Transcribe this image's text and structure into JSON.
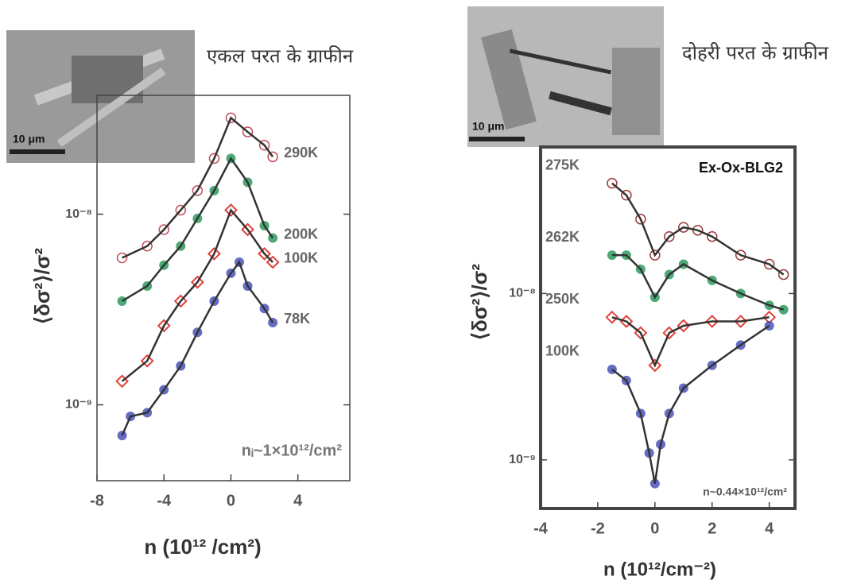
{
  "chart_data": [
    {
      "type": "scatter",
      "caption": "एकल परत के ग्राफीन",
      "inset_scale": "10 μm",
      "x_label": "n (10¹² /cm²)",
      "y_label": "⟨δσ²⟩/σ²",
      "note": "nᵢ~1×10¹²/cm²",
      "xlim": [
        -8,
        7.1
      ],
      "xticks": [
        -8,
        -4,
        0,
        4
      ],
      "ylim": [
        4e-10,
        4.2e-08
      ],
      "log_y": true,
      "yticks": [
        {
          "value": 1e-08,
          "label": "10⁻⁸"
        },
        {
          "value": 1e-09,
          "label": "10⁻⁹"
        }
      ],
      "fit_line": true,
      "series": [
        {
          "name": "290K",
          "color": "#c0505a",
          "marker": "open-circle",
          "x": [
            -6.5,
            -5,
            -4,
            -3,
            -2,
            -1,
            0,
            1,
            2,
            2.5
          ],
          "values": [
            5.9e-09,
            6.8e-09,
            8.3e-09,
            1.05e-08,
            1.33e-08,
            1.96e-08,
            3.2e-08,
            2.7e-08,
            2.3e-08,
            2e-08
          ]
        },
        {
          "name": "200K",
          "color": "#2e9a5e",
          "marker": "circle",
          "x": [
            -6.5,
            -5,
            -4,
            -3,
            -2,
            -1,
            0,
            1,
            2,
            2.5
          ],
          "values": [
            3.5e-09,
            4.2e-09,
            5.4e-09,
            6.8e-09,
            9.5e-09,
            1.33e-08,
            1.96e-08,
            1.47e-08,
            8.7e-09,
            7.5e-09
          ]
        },
        {
          "name": "100K",
          "color": "#e0403a",
          "marker": "diamond",
          "x": [
            -6.5,
            -5,
            -4,
            -3,
            -2,
            -1,
            0,
            1,
            2,
            2.5
          ],
          "values": [
            1.33e-09,
            1.7e-09,
            2.6e-09,
            3.5e-09,
            4.4e-09,
            6.2e-09,
            1.05e-08,
            8.3e-09,
            6.2e-09,
            5.6e-09
          ]
        },
        {
          "name": "78K",
          "color": "#4a52b8",
          "marker": "circle",
          "x": [
            -6.5,
            -6,
            -5,
            -4,
            -3,
            -2,
            -1,
            0,
            0.5,
            1,
            2,
            2.5
          ],
          "values": [
            6.9e-10,
            8.7e-10,
            9.1e-10,
            1.2e-09,
            1.6e-09,
            2.4e-09,
            3.5e-09,
            4.9e-09,
            5.6e-09,
            4.2e-09,
            3.2e-09,
            2.7e-09
          ]
        }
      ]
    },
    {
      "type": "scatter",
      "caption": "दोहरी परत के ग्राफीन",
      "inset_scale": "10 μm",
      "x_label": "n (10¹²/cm⁻²)",
      "y_label": "⟨δσ²⟩/σ²",
      "note": "n~0.44×10¹²/cm²",
      "sample": "Ex-Ox-BLG2",
      "xlim": [
        -4,
        4.9
      ],
      "xticks": [
        -4,
        -2,
        0,
        2,
        4
      ],
      "ylim": [
        5.1e-10,
        7.6e-08
      ],
      "log_y": true,
      "yticks": [
        {
          "value": 1e-08,
          "label": "10⁻⁸"
        },
        {
          "value": 1e-09,
          "label": "10⁻⁹"
        }
      ],
      "fit_line": true,
      "series": [
        {
          "name": "275K",
          "color": "#9a3a3a",
          "marker": "open-circle",
          "x": [
            -1.5,
            -1,
            -0.5,
            0,
            0.5,
            1,
            1.5,
            2,
            3,
            4,
            4.5
          ],
          "values": [
            4.6e-08,
            3.9e-08,
            2.8e-08,
            1.7e-08,
            2.2e-08,
            2.5e-08,
            2.4e-08,
            2.2e-08,
            1.7e-08,
            1.5e-08,
            1.3e-08
          ]
        },
        {
          "name": "262K",
          "color": "#2e9a5e",
          "marker": "circle",
          "x": [
            -1.5,
            -1,
            -0.5,
            0,
            0.5,
            1,
            2,
            3,
            4,
            4.5
          ],
          "values": [
            1.7e-08,
            1.7e-08,
            1.4e-08,
            9.5e-09,
            1.3e-08,
            1.5e-08,
            1.2e-08,
            1e-08,
            8.5e-09,
            8e-09
          ]
        },
        {
          "name": "250K",
          "color": "#e0403a",
          "marker": "diamond",
          "x": [
            -1.5,
            -1,
            -0.5,
            0,
            0.5,
            1,
            2,
            3,
            4
          ],
          "values": [
            7.2e-09,
            6.8e-09,
            5.8e-09,
            3.7e-09,
            5.8e-09,
            6.4e-09,
            6.8e-09,
            6.8e-09,
            7.2e-09
          ]
        },
        {
          "name": "100K",
          "color": "#4a52b8",
          "marker": "circle",
          "x": [
            -1.5,
            -1,
            -0.5,
            -0.2,
            0,
            0.2,
            0.5,
            1,
            2,
            3,
            4
          ],
          "values": [
            3.5e-09,
            3e-09,
            1.9e-09,
            1.1e-09,
            7.2e-10,
            1.24e-09,
            1.9e-09,
            2.7e-09,
            3.7e-09,
            4.9e-09,
            6.4e-09
          ]
        }
      ]
    }
  ]
}
